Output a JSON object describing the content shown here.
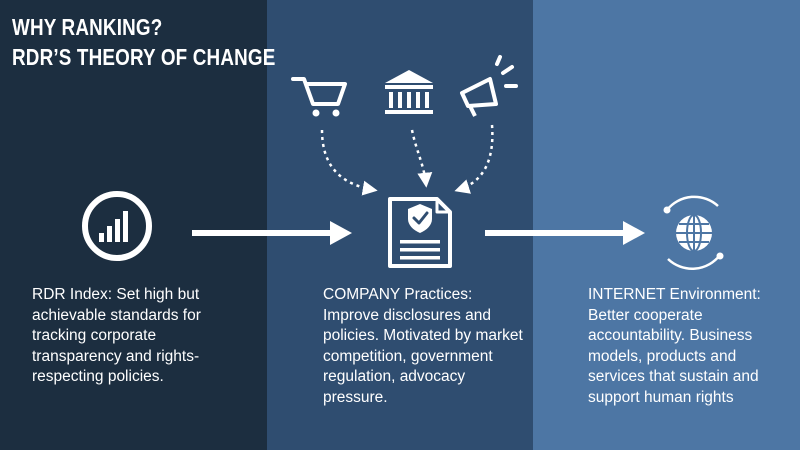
{
  "title": {
    "line1": "WHY RANKING?",
    "line2": "RDR’S THEORY OF CHANGE"
  },
  "columns": [
    {
      "text": "RDR Index: Set high but\nachievable standards for\ntracking corporate\ntransparency and rights-\nrespecting policies."
    },
    {
      "text": "COMPANY Practices:\nImprove disclosures and\npolicies. Motivated by market\ncompetition, government\nregulation, advocacy\npressure."
    },
    {
      "text": "INTERNET Environment:\nBetter cooperate\naccountability. Business\nmodels, products and\nservices that sustain and\nsupport human rights"
    }
  ],
  "icons": {
    "bar_chart": "bar-chart-icon",
    "shopping_cart": "shopping-cart-icon",
    "government_building": "bank-building-icon",
    "megaphone": "megaphone-icon",
    "policy_document": "shield-document-icon",
    "globe": "globe-icon"
  },
  "colors": {
    "left_band": "#1c2e40",
    "middle_band": "#2f4d70",
    "right_band": "#4d76a4",
    "foreground": "#ffffff"
  }
}
